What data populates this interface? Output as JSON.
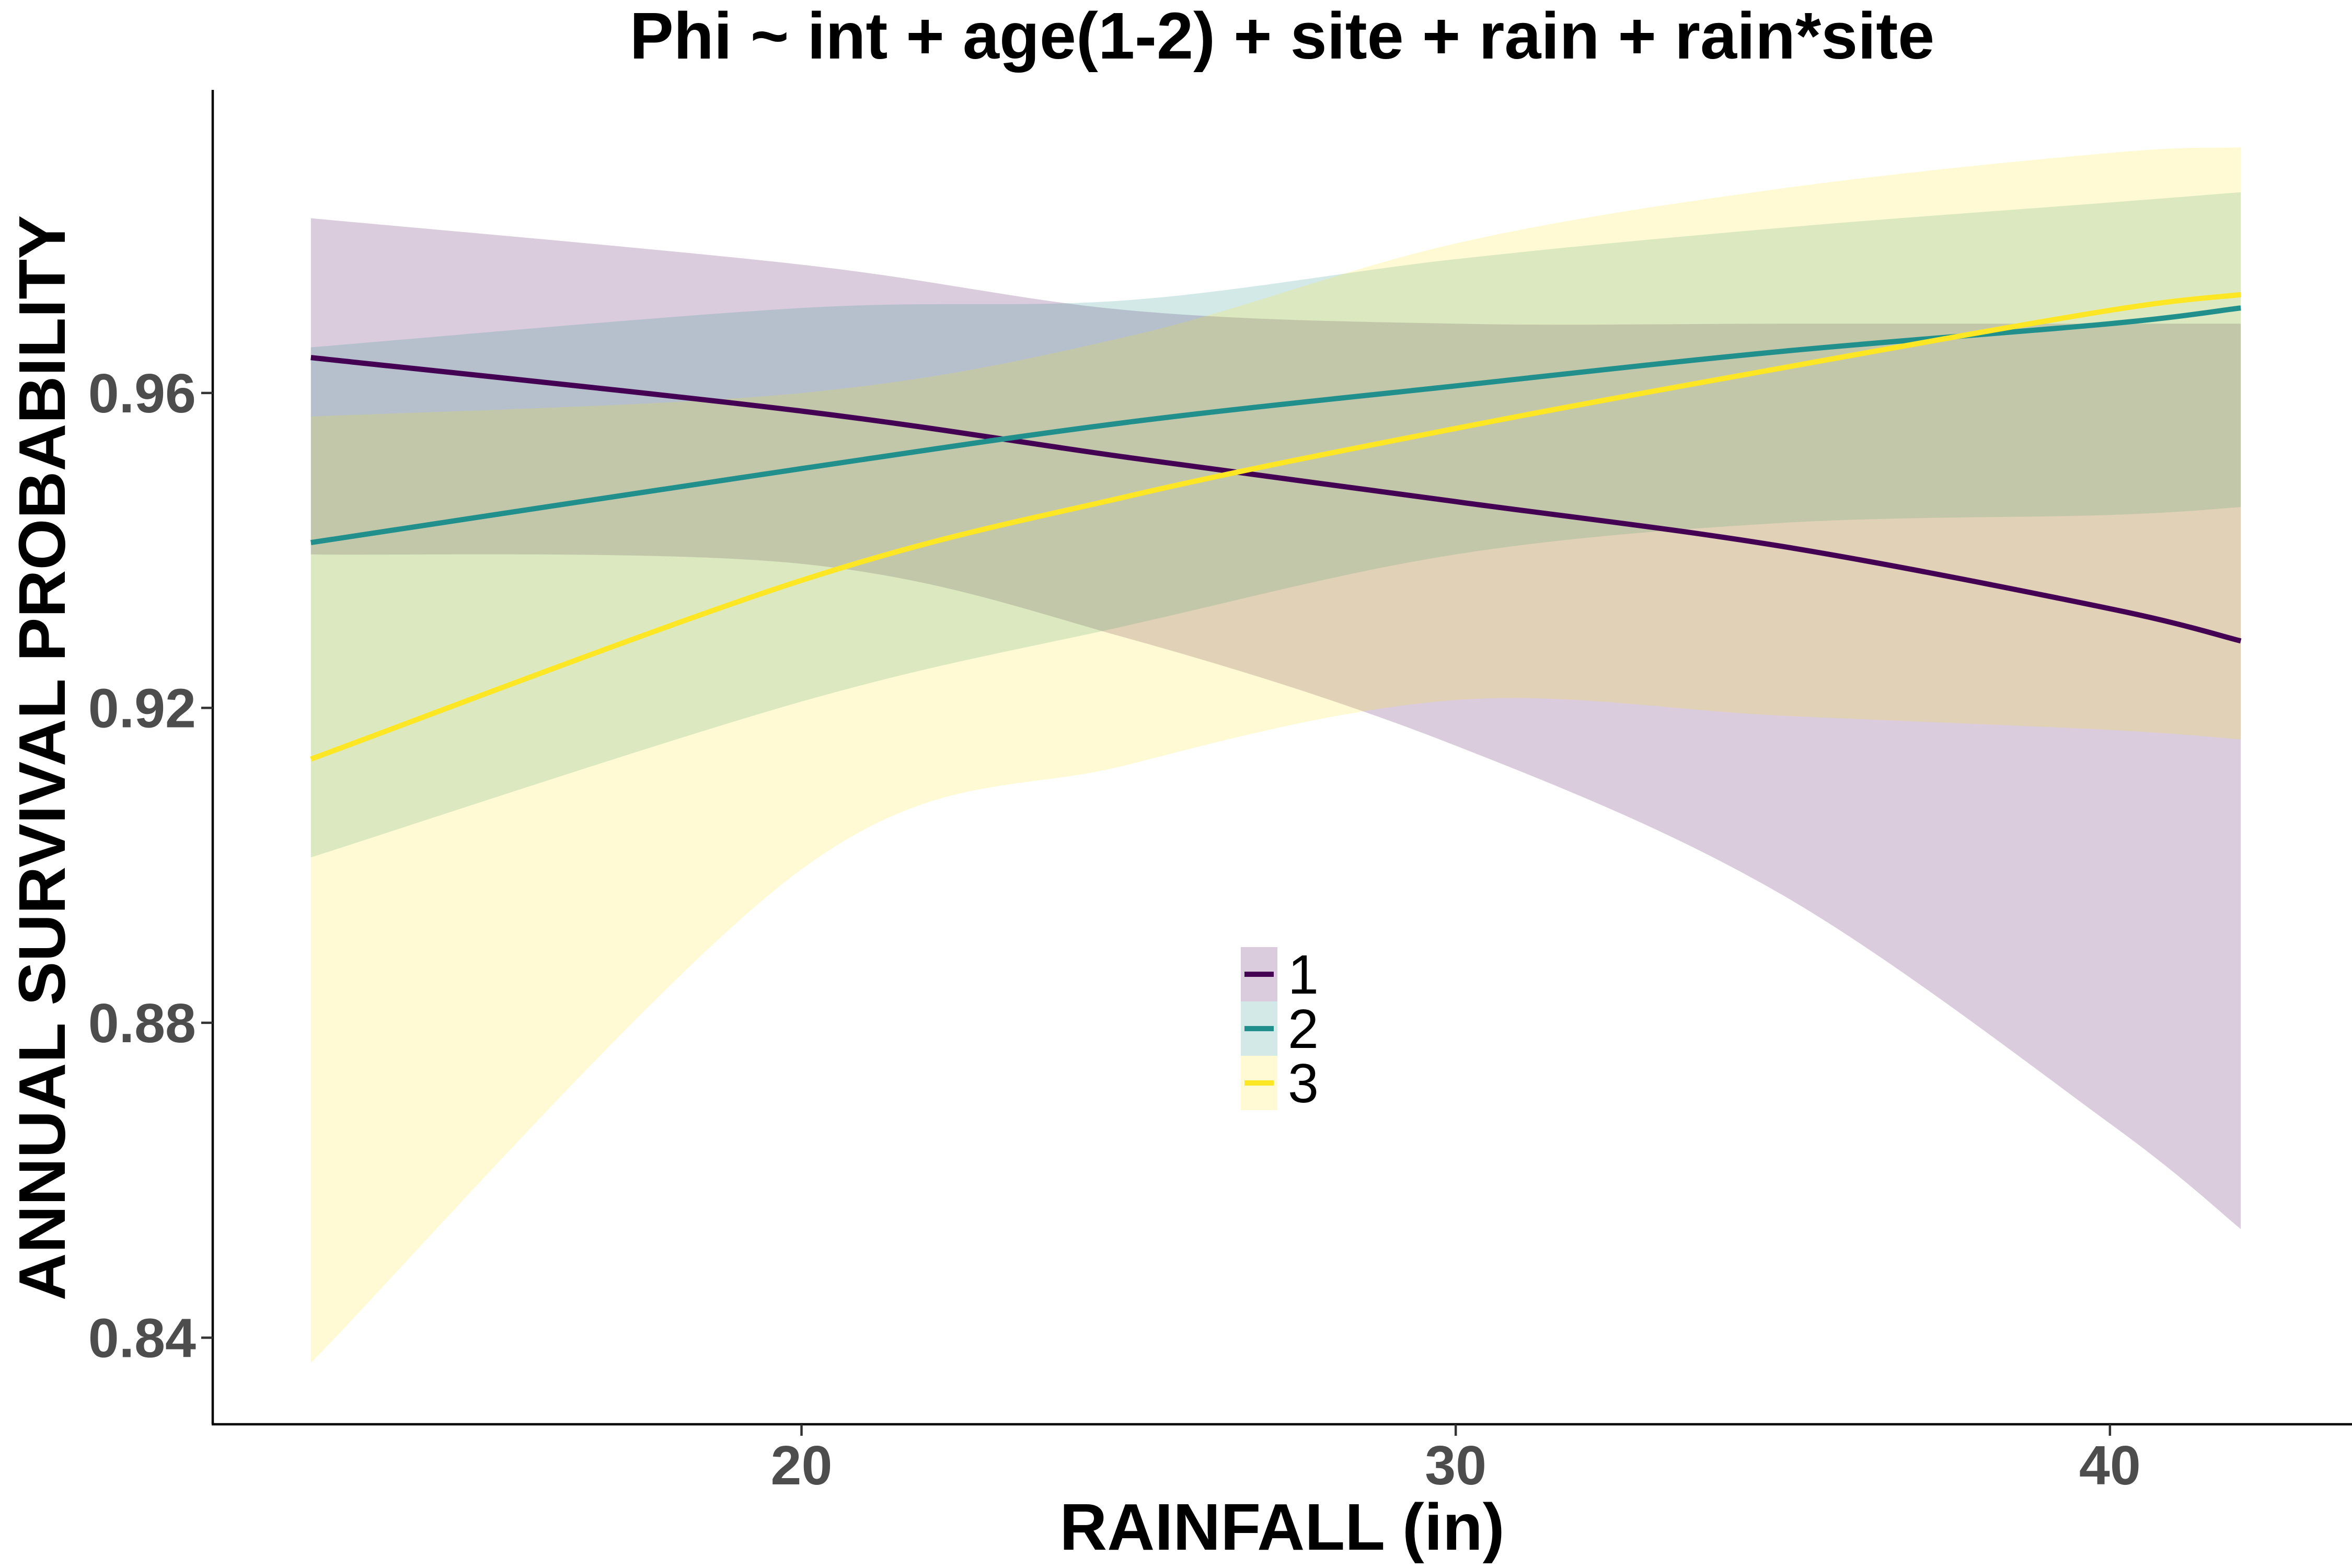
{
  "chart_data": {
    "type": "line",
    "title": "Phi ~ int + age(1-2) + site + rain + rain*site",
    "xlabel": "RAINFALL (in)",
    "ylabel": "ANNUAL SURVIVAL PROBABILITY",
    "xlim": [
      11,
      43.7
    ],
    "ylim": [
      0.829,
      0.9985
    ],
    "x_ticks": [
      20,
      30,
      40
    ],
    "y_ticks": [
      0.84,
      0.88,
      0.92,
      0.96
    ],
    "x_tick_labels": [
      "20",
      "30",
      "40"
    ],
    "y_tick_labels": [
      "0.84",
      "0.88",
      "0.92",
      "0.96"
    ],
    "grid": false,
    "legend_position": "center",
    "x": [
      12.5,
      20,
      25,
      30,
      35,
      40,
      42
    ],
    "series": [
      {
        "name": "1",
        "color": "#440154",
        "values": [
          0.9645,
          0.9577,
          0.9518,
          0.9462,
          0.9405,
          0.9326,
          0.9285
        ],
        "lower": [
          0.9395,
          0.9383,
          0.9288,
          0.9152,
          0.8962,
          0.8672,
          0.8538
        ],
        "upper": [
          0.9822,
          0.9763,
          0.9705,
          0.9688,
          0.9688,
          0.9688,
          0.9688
        ]
      },
      {
        "name": "2",
        "color": "#21908c",
        "values": [
          0.941,
          0.9504,
          0.9563,
          0.9609,
          0.9653,
          0.9688,
          0.9708
        ],
        "lower": [
          0.901,
          0.9208,
          0.9305,
          0.9395,
          0.9435,
          0.9445,
          0.9455
        ],
        "upper": [
          0.9658,
          0.9708,
          0.9718,
          0.977,
          0.981,
          0.9842,
          0.9855
        ]
      },
      {
        "name": "3",
        "color": "#fde725",
        "values": [
          0.9135,
          0.9362,
          0.9469,
          0.9555,
          0.9632,
          0.9705,
          0.9725
        ],
        "lower": [
          0.8368,
          0.8995,
          0.9128,
          0.921,
          0.919,
          0.9172,
          0.916
        ],
        "upper": [
          0.957,
          0.96,
          0.9672,
          0.979,
          0.986,
          0.9905,
          0.9912
        ]
      }
    ]
  }
}
